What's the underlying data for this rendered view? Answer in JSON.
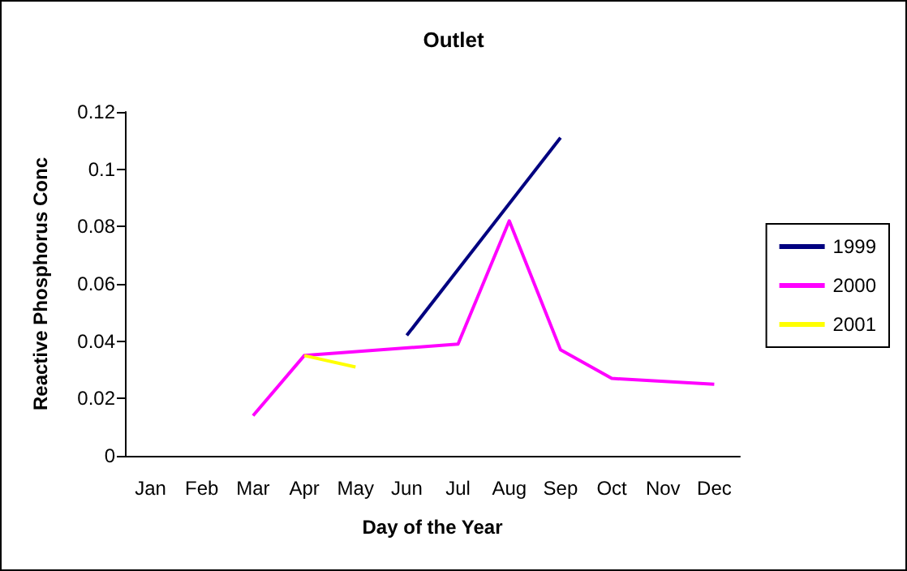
{
  "chart_data": {
    "type": "line",
    "title": "Outlet",
    "xlabel": "Day of the Year",
    "ylabel": "Reactive Phosphorus Conc",
    "categories": [
      "Jan",
      "Feb",
      "Mar",
      "Apr",
      "May",
      "Jun",
      "Jul",
      "Aug",
      "Sep",
      "Oct",
      "Nov",
      "Dec"
    ],
    "ylim": [
      0,
      0.12
    ],
    "yticks": [
      0,
      0.02,
      0.04,
      0.06,
      0.08,
      0.1,
      0.12
    ],
    "series": [
      {
        "name": "1999",
        "color": "#000080",
        "values": [
          null,
          null,
          null,
          null,
          null,
          0.042,
          null,
          null,
          0.111,
          null,
          null,
          null
        ]
      },
      {
        "name": "2000",
        "color": "#ff00ff",
        "values": [
          null,
          null,
          0.014,
          0.035,
          null,
          null,
          0.039,
          0.082,
          0.037,
          0.027,
          null,
          0.025
        ]
      },
      {
        "name": "2001",
        "color": "#ffff00",
        "values": [
          null,
          null,
          null,
          0.035,
          0.031,
          null,
          null,
          null,
          null,
          null,
          null,
          null
        ]
      }
    ],
    "legend": "right",
    "grid": false,
    "marker": "none",
    "line_style": "solid"
  }
}
